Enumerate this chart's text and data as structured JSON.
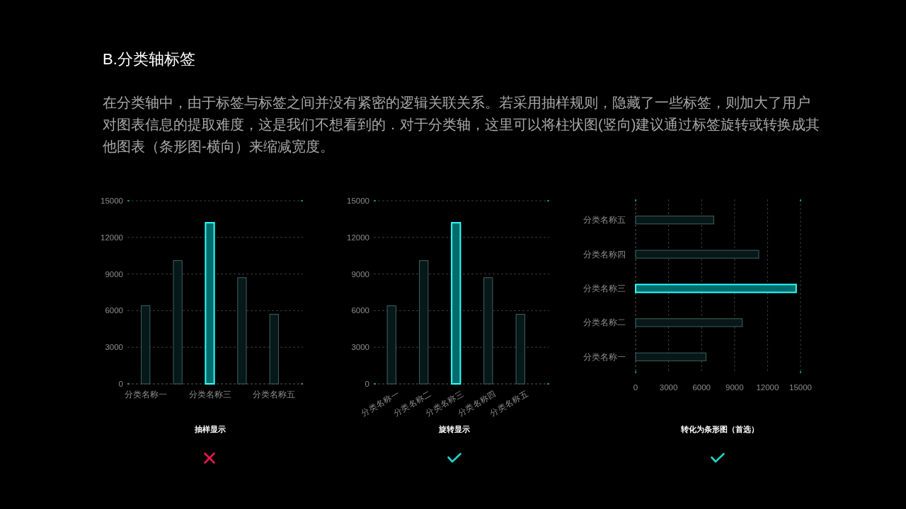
{
  "chart_data": [
    {
      "type": "other",
      "title": "B.分类轴标签",
      "subtitle": "在分类轴中，由于标签与标签之间并没有紧密的逻辑关联关系。若采用抽样规则，隐藏了一些标签，则加大了用户对图表信息的提取难度，这是我们不想看到的．对于分类轴，这里可以将柱状图(竖向)建议通过标签旋转或转换成其他图表（条形图-横向）来缩减宽度。"
    },
    {
      "type": "bar",
      "title": "抽样显示",
      "categories": [
        "分类名称一",
        null,
        "分类名称三",
        null,
        "分类名称五"
      ],
      "values": [
        6400,
        10100,
        13200,
        8700,
        5700
      ],
      "colors": [
        "#071818",
        "#071818",
        "#006b6b",
        "#071818",
        "#071818"
      ],
      "ylim": [
        0,
        15000
      ],
      "yticks": [
        0,
        3000,
        6000,
        9000,
        12000,
        15000
      ],
      "grid": "y"
    },
    {
      "type": "bar",
      "title": "旋转显示",
      "categories": [
        "分类名称一",
        "分类名称二",
        "分类名称三",
        "分类名称四",
        "分类名称五"
      ],
      "values": [
        6400,
        10100,
        13200,
        8700,
        5700
      ],
      "colors": [
        "#071818",
        "#071818",
        "#006b6b",
        "#071818",
        "#071818"
      ],
      "ylim": [
        0,
        15000
      ],
      "yticks": [
        0,
        3000,
        6000,
        9000,
        12000,
        15000
      ],
      "grid": "y"
    },
    {
      "type": "bar",
      "orientation": "horizontal",
      "title": "转化为条形图（首选）",
      "categories": [
        "分类名称五",
        "分类名称四",
        "分类名称三",
        "分类名称二",
        "分类名称一"
      ],
      "values": [
        7100,
        11200,
        14600,
        9700,
        6400
      ],
      "colors": [
        "#071818",
        "#071818",
        "#006b6b",
        "#071818",
        "#071818"
      ],
      "xlim": [
        0,
        15000
      ],
      "xticks": [
        0,
        3000,
        6000,
        9000,
        12000,
        15000
      ],
      "grid": "x"
    }
  ]
}
